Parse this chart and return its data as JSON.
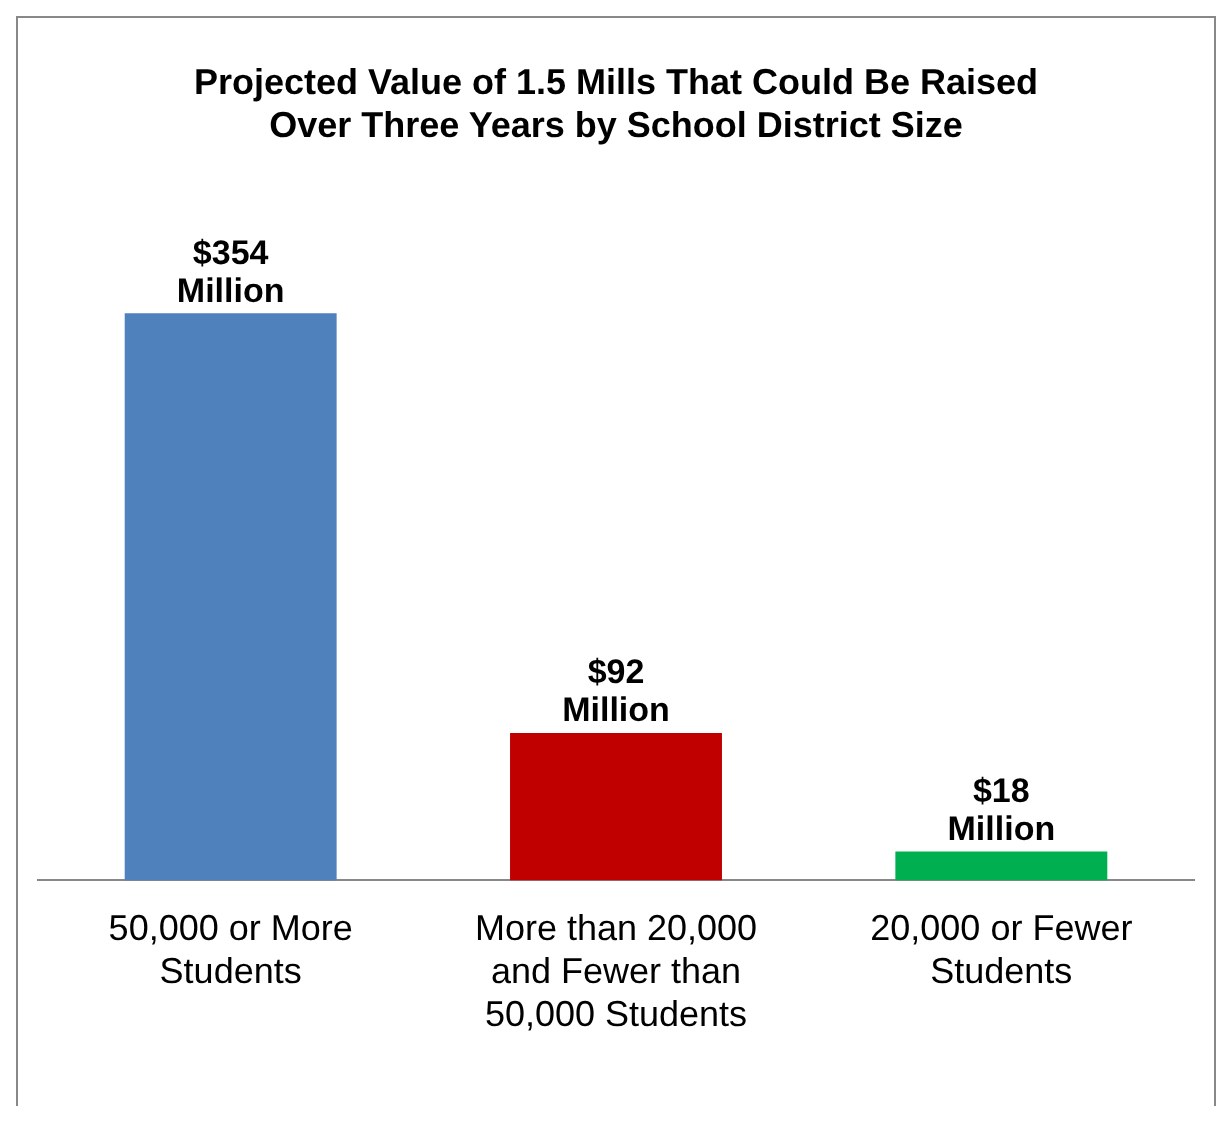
{
  "chart_data": {
    "type": "bar",
    "title": "Projected Value of 1.5 Mills That Could Be Raised Over Three Years by School District Size",
    "categories": [
      "50,000 or More Students",
      "More than 20,000 and Fewer than 50,000 Students",
      "20,000 or Fewer Students"
    ],
    "values": [
      354,
      92,
      18
    ],
    "colors": [
      "#4f81bd",
      "#c00000",
      "#00b050"
    ],
    "value_labels": [
      "$354 Million",
      "$92 Million",
      "$18 Million"
    ],
    "grid": false,
    "legend": false
  }
}
